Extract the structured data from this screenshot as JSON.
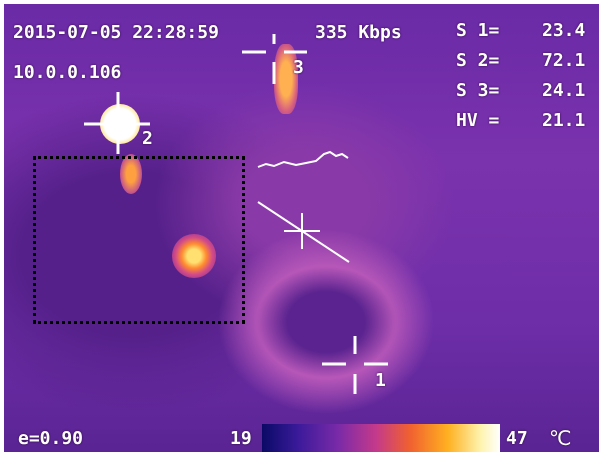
{
  "overlay": {
    "timestamp": "2015-07-05 22:28:59",
    "bitrate": "335 Kbps",
    "ip": "10.0.0.106",
    "emissivity": "e=0.90"
  },
  "readings": [
    {
      "label": "S 1=",
      "value": "23.4"
    },
    {
      "label": "S 2=",
      "value": "72.1"
    },
    {
      "label": "S 3=",
      "value": "24.1"
    },
    {
      "label": "HV =",
      "value": "21.1"
    }
  ],
  "spot_markers": [
    {
      "id": "1"
    },
    {
      "id": "2"
    },
    {
      "id": "3"
    }
  ],
  "scale": {
    "min": "19",
    "max": "47",
    "unit": "℃"
  },
  "colors": {
    "overlay_text": "#ffffff",
    "roi_border": "#000000"
  }
}
